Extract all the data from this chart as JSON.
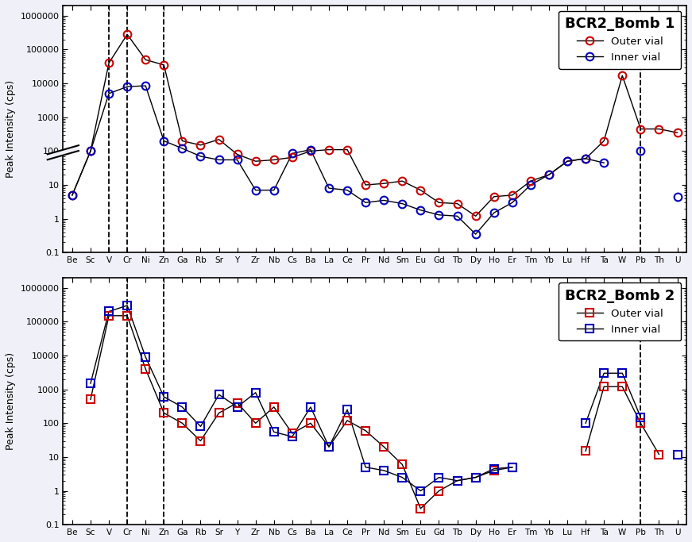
{
  "elements": [
    "Be",
    "Sc",
    "V",
    "Cr",
    "Ni",
    "Zn",
    "Ga",
    "Rb",
    "Sr",
    "Y",
    "Zr",
    "Nb",
    "Cs",
    "Ba",
    "La",
    "Ce",
    "Pr",
    "Nd",
    "Sm",
    "Eu",
    "Gd",
    "Tb",
    "Dy",
    "Ho",
    "Er",
    "Tm",
    "Yb",
    "Lu",
    "Hf",
    "Ta",
    "W",
    "Pb",
    "Th",
    "U"
  ],
  "bomb1_outer": [
    5,
    100,
    40000,
    280000,
    50000,
    35000,
    200,
    150,
    220,
    80,
    50,
    55,
    65,
    100,
    110,
    110,
    10,
    11,
    13,
    7,
    3.0,
    2.8,
    1.2,
    4.5,
    5,
    13,
    20,
    50,
    60,
    200,
    17000,
    450,
    450,
    350
  ],
  "bomb1_inner": [
    5,
    100,
    5000,
    8000,
    8500,
    200,
    120,
    70,
    55,
    55,
    7,
    7,
    85,
    110,
    8,
    7,
    3,
    3.5,
    2.8,
    1.8,
    1.3,
    1.2,
    0.35,
    1.5,
    3,
    10,
    20,
    50,
    60,
    45,
    null,
    100,
    null,
    4.5
  ],
  "bomb2_outer": [
    null,
    500,
    150000,
    150000,
    4000,
    200,
    100,
    30,
    200,
    400,
    100,
    300,
    50,
    100,
    20,
    120,
    60,
    20,
    6,
    0.3,
    1,
    2,
    2.5,
    4,
    5,
    null,
    null,
    null,
    15,
    1200,
    1200,
    100,
    12,
    null
  ],
  "bomb2_inner": [
    null,
    1500,
    200000,
    300000,
    9000,
    600,
    300,
    80,
    700,
    300,
    800,
    55,
    40,
    300,
    20,
    250,
    5,
    4,
    2.5,
    1,
    2.5,
    2,
    2.5,
    4.5,
    5,
    null,
    null,
    null,
    100,
    3000,
    3000,
    150,
    null,
    12
  ],
  "dashed_lines_bomb1": [
    2,
    3,
    5,
    31
  ],
  "dashed_lines_bomb2": [
    3,
    5,
    31
  ],
  "title1": "BCR2_Bomb 1",
  "title2": "BCR2_Bomb 2",
  "ylabel": "Peak Intensity (cps)",
  "outer_color1": "#cc0000",
  "inner_color1": "#0000bb",
  "outer_color2": "#cc0000",
  "inner_color2": "#0000bb",
  "line_color": "black",
  "bg_color": "#ffffff",
  "fig_bg": "#f0f0f8"
}
